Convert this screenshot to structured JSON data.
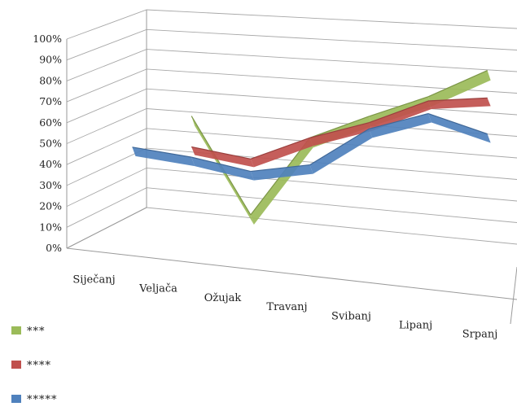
{
  "chart_data": {
    "type": "line",
    "style": "3d",
    "grid": true,
    "legend_position": "bottom-left",
    "y_tick_labels": [
      "0%",
      "10%",
      "20%",
      "30%",
      "40%",
      "50%",
      "60%",
      "70%",
      "80%",
      "90%",
      "100%"
    ],
    "ylim": [
      0,
      100
    ],
    "categories": [
      "Siječanj",
      "Veljača",
      "Ožujak",
      "Travanj",
      "Svibanj",
      "Lipanj",
      "Srpanj"
    ],
    "series": [
      {
        "name": "***",
        "color": "#9bbb59",
        "values": [
          null,
          60,
          15,
          55,
          68,
          80,
          95
        ]
      },
      {
        "name": "****",
        "color": "#c0504d",
        "values": [
          null,
          45,
          42,
          55,
          65,
          78,
          82
        ]
      },
      {
        "name": "*****",
        "color": "#4f81bd",
        "values": [
          42,
          40,
          36,
          42,
          62,
          72,
          65
        ]
      }
    ]
  }
}
